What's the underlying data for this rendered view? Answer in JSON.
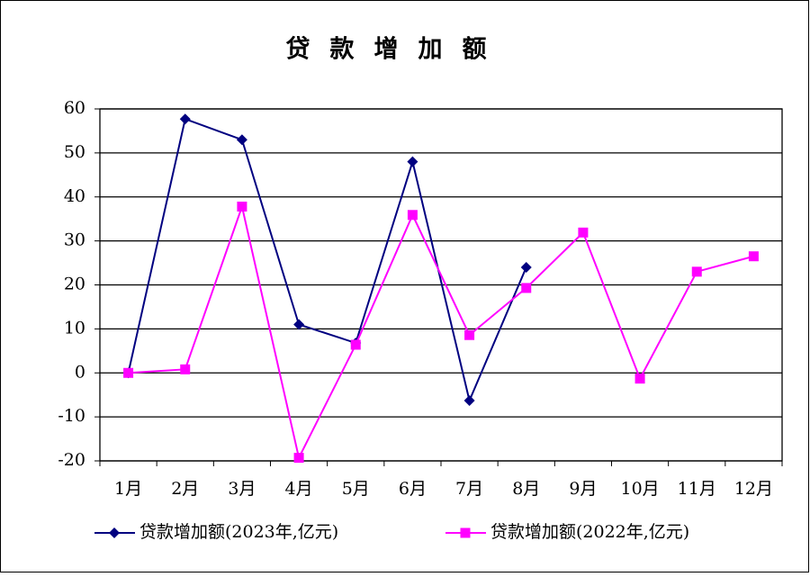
{
  "chart_data": {
    "type": "line",
    "title": "贷款增加额",
    "categories": [
      "1月",
      "2月",
      "3月",
      "4月",
      "5月",
      "6月",
      "7月",
      "8月",
      "9月",
      "10月",
      "11月",
      "12月"
    ],
    "series": [
      {
        "name": "贷款增加额(2023年,亿元)",
        "color": "#000080",
        "marker": "diamond",
        "values": [
          0,
          57.7,
          53,
          11,
          6.8,
          48,
          -6.3,
          24,
          null,
          null,
          null,
          null
        ]
      },
      {
        "name": "贷款增加额(2022年,亿元)",
        "color": "#ff00ff",
        "marker": "square",
        "values": [
          0,
          0.8,
          37.8,
          -19.3,
          6.4,
          35.9,
          8.6,
          19.3,
          31.9,
          -1.3,
          23,
          26.5
        ]
      }
    ],
    "ylim": [
      -20,
      60
    ],
    "yticks": [
      -20,
      -10,
      0,
      10,
      20,
      30,
      40,
      50,
      60
    ],
    "grid": true,
    "legend": "bottom"
  }
}
